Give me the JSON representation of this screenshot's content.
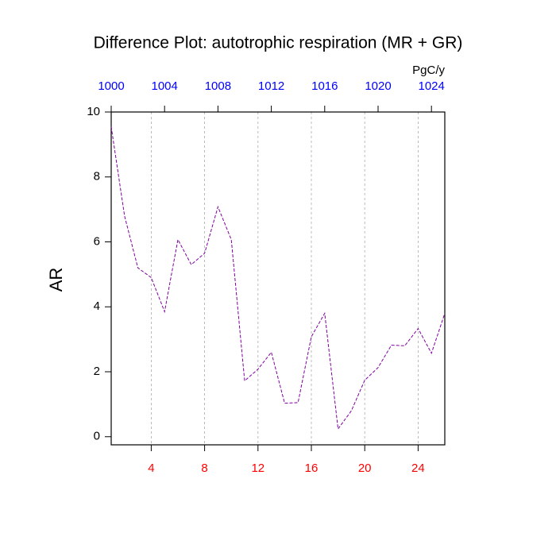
{
  "chart_data": {
    "type": "line",
    "title": "Difference Plot: autotrophic respiration (MR + GR)",
    "ylabel": "AR",
    "x2label": "PgC/y",
    "x": [
      1,
      2,
      3,
      4,
      5,
      6,
      7,
      8,
      9,
      10,
      11,
      12,
      13,
      14,
      15,
      16,
      17,
      18,
      19,
      20,
      21,
      22,
      23,
      24,
      25,
      26
    ],
    "series": [
      {
        "color": "#8000a0",
        "values": [
          9.55,
          6.8,
          5.2,
          4.9,
          3.85,
          6.07,
          5.3,
          5.65,
          7.08,
          6.07,
          1.72,
          2.08,
          2.6,
          1.03,
          1.05,
          3.08,
          3.8,
          0.24,
          0.8,
          1.74,
          2.13,
          2.82,
          2.8,
          3.33,
          2.57,
          3.8
        ]
      }
    ],
    "xlim": [
      1,
      26
    ],
    "xticks": [
      4,
      8,
      12,
      16,
      20,
      24
    ],
    "xtick_color": "#ff0000",
    "x2lim": [
      1000,
      1025
    ],
    "x2ticks": [
      1000,
      1004,
      1008,
      1012,
      1016,
      1020,
      1024
    ],
    "x2tick_color": "#0000ff",
    "ylim": [
      -0.25,
      10
    ],
    "yticks": [
      0,
      2,
      4,
      6,
      8,
      10
    ],
    "grid": true
  }
}
